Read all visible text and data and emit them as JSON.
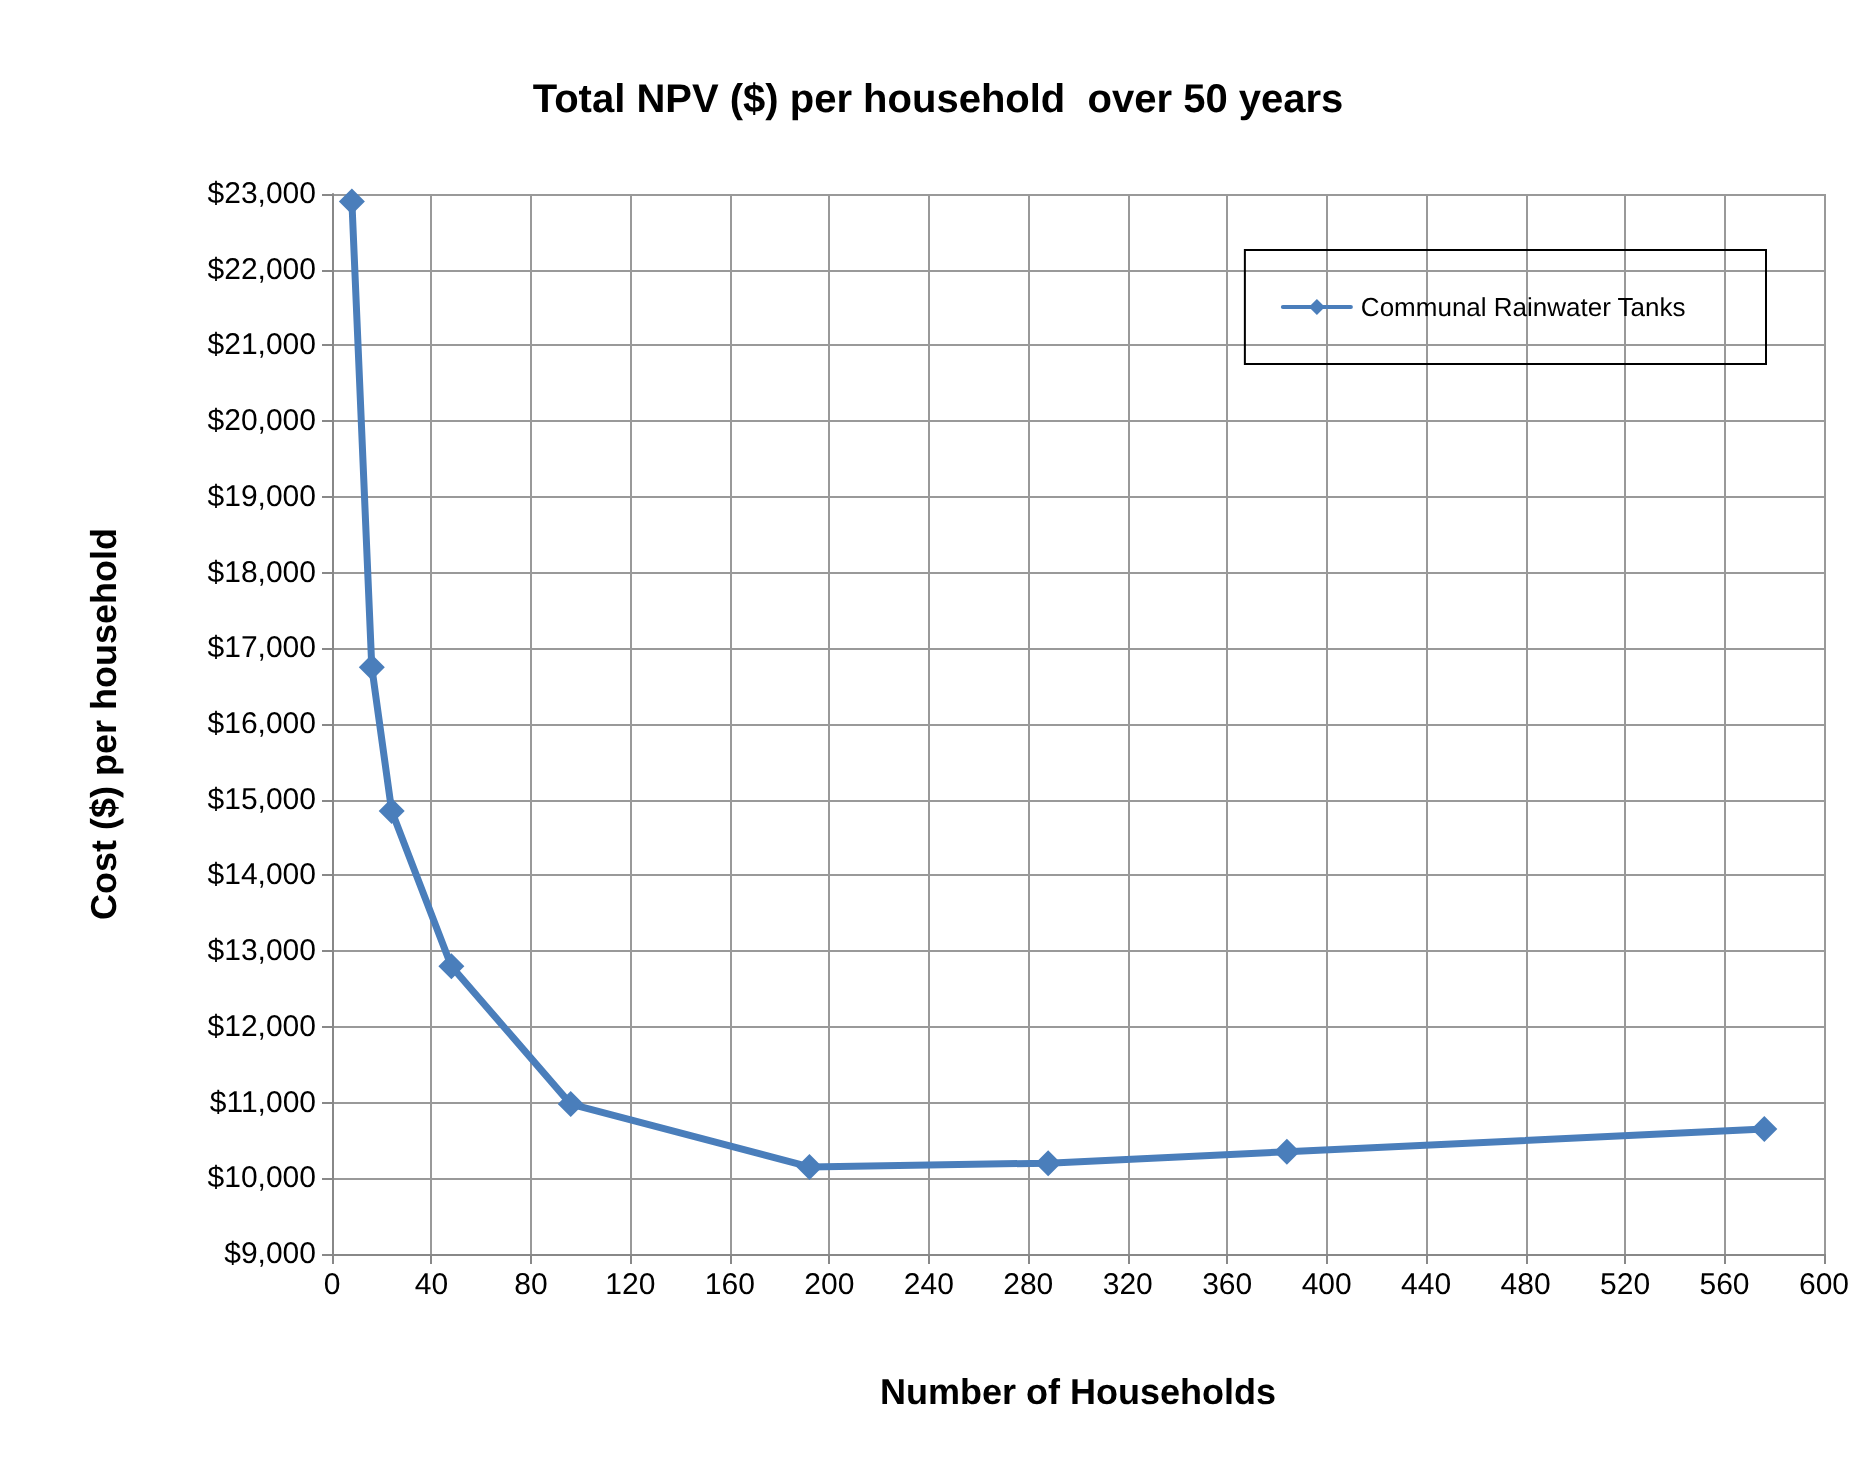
{
  "chart_data": {
    "type": "line",
    "title": "Total NPV ($) per household  over 50 years",
    "xlabel": "Number of Households",
    "ylabel": "Cost ($) per household",
    "x": [
      8,
      16,
      24,
      48,
      96,
      192,
      288,
      384,
      576
    ],
    "series": [
      {
        "name": "Communal Rainwater Tanks",
        "color": "#4a7ebb",
        "values": [
          22900,
          16750,
          14850,
          12800,
          10980,
          10150,
          10200,
          10350,
          10650
        ]
      }
    ],
    "xlim": [
      0,
      600
    ],
    "xticks": [
      0,
      40,
      80,
      120,
      160,
      200,
      240,
      280,
      320,
      360,
      400,
      440,
      480,
      520,
      560,
      600
    ],
    "ylim": [
      9000,
      23000
    ],
    "yticks": [
      {
        "value": 9000,
        "label": "$9,000"
      },
      {
        "value": 10000,
        "label": "$10,000"
      },
      {
        "value": 11000,
        "label": "$11,000"
      },
      {
        "value": 12000,
        "label": "$12,000"
      },
      {
        "value": 13000,
        "label": "$13,000"
      },
      {
        "value": 14000,
        "label": "$14,000"
      },
      {
        "value": 15000,
        "label": "$15,000"
      },
      {
        "value": 16000,
        "label": "$16,000"
      },
      {
        "value": 17000,
        "label": "$17,000"
      },
      {
        "value": 18000,
        "label": "$18,000"
      },
      {
        "value": 19000,
        "label": "$19,000"
      },
      {
        "value": 20000,
        "label": "$20,000"
      },
      {
        "value": 21000,
        "label": "$21,000"
      },
      {
        "value": 22000,
        "label": "$22,000"
      },
      {
        "value": 23000,
        "label": "$23,000"
      }
    ],
    "grid": true,
    "legend": "top right",
    "marker": "diamond",
    "line_style": "solid"
  }
}
